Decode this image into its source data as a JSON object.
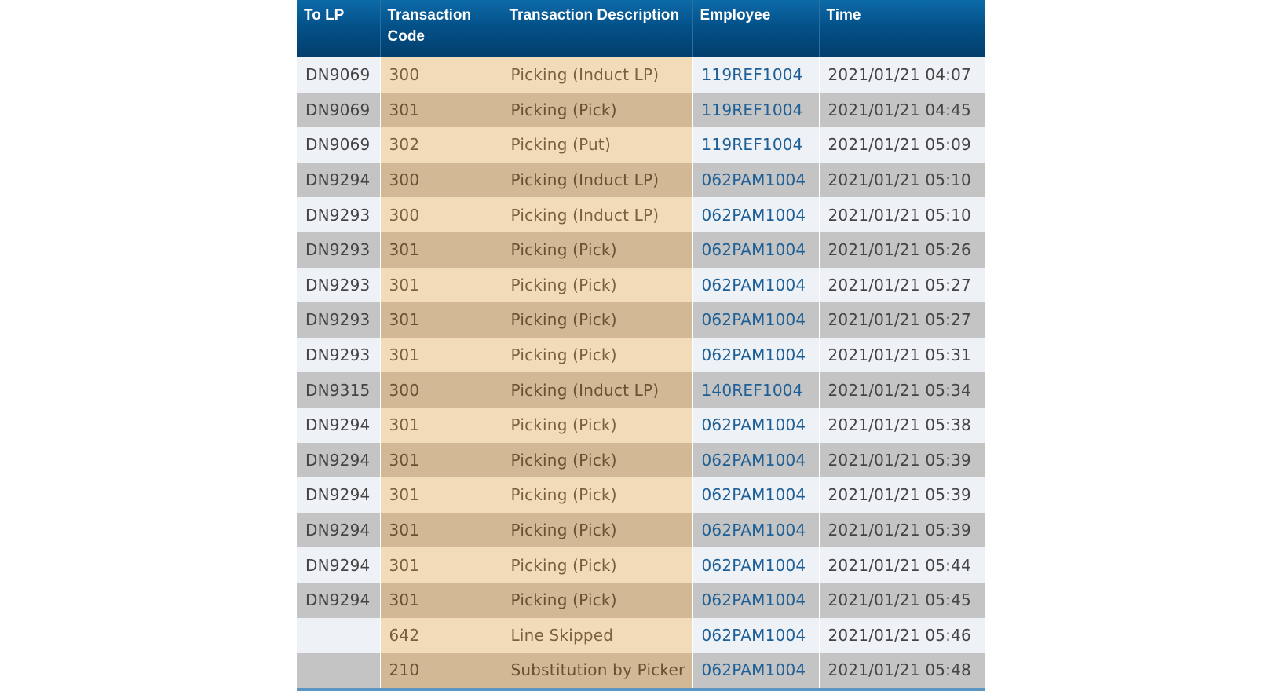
{
  "table": {
    "headers": {
      "to_lp": "To LP",
      "transaction_code": "Transaction Code",
      "transaction_description": "Transaction Description",
      "employee": "Employee",
      "time": "Time"
    },
    "rows": [
      {
        "to_lp": "DN9069",
        "code": "300",
        "description": "Picking (Induct LP)",
        "employee": "119REF1004",
        "time": "2021/01/21 04:07"
      },
      {
        "to_lp": "DN9069",
        "code": "301",
        "description": "Picking (Pick)",
        "employee": "119REF1004",
        "time": "2021/01/21 04:45"
      },
      {
        "to_lp": "DN9069",
        "code": "302",
        "description": "Picking (Put)",
        "employee": "119REF1004",
        "time": "2021/01/21 05:09"
      },
      {
        "to_lp": "DN9294",
        "code": "300",
        "description": "Picking (Induct LP)",
        "employee": "062PAM1004",
        "time": "2021/01/21 05:10"
      },
      {
        "to_lp": "DN9293",
        "code": "300",
        "description": "Picking (Induct LP)",
        "employee": "062PAM1004",
        "time": "2021/01/21 05:10"
      },
      {
        "to_lp": "DN9293",
        "code": "301",
        "description": "Picking (Pick)",
        "employee": "062PAM1004",
        "time": "2021/01/21 05:26"
      },
      {
        "to_lp": "DN9293",
        "code": "301",
        "description": "Picking (Pick)",
        "employee": "062PAM1004",
        "time": "2021/01/21 05:27"
      },
      {
        "to_lp": "DN9293",
        "code": "301",
        "description": "Picking (Pick)",
        "employee": "062PAM1004",
        "time": "2021/01/21 05:27"
      },
      {
        "to_lp": "DN9293",
        "code": "301",
        "description": "Picking (Pick)",
        "employee": "062PAM1004",
        "time": "2021/01/21 05:31"
      },
      {
        "to_lp": "DN9315",
        "code": "300",
        "description": "Picking (Induct LP)",
        "employee": "140REF1004",
        "time": "2021/01/21 05:34"
      },
      {
        "to_lp": "DN9294",
        "code": "301",
        "description": "Picking (Pick)",
        "employee": "062PAM1004",
        "time": "2021/01/21 05:38"
      },
      {
        "to_lp": "DN9294",
        "code": "301",
        "description": "Picking (Pick)",
        "employee": "062PAM1004",
        "time": "2021/01/21 05:39"
      },
      {
        "to_lp": "DN9294",
        "code": "301",
        "description": "Picking (Pick)",
        "employee": "062PAM1004",
        "time": "2021/01/21 05:39"
      },
      {
        "to_lp": "DN9294",
        "code": "301",
        "description": "Picking (Pick)",
        "employee": "062PAM1004",
        "time": "2021/01/21 05:39"
      },
      {
        "to_lp": "DN9294",
        "code": "301",
        "description": "Picking (Pick)",
        "employee": "062PAM1004",
        "time": "2021/01/21 05:44"
      },
      {
        "to_lp": "DN9294",
        "code": "301",
        "description": "Picking (Pick)",
        "employee": "062PAM1004",
        "time": "2021/01/21 05:45"
      },
      {
        "to_lp": "",
        "code": "642",
        "description": "Line Skipped",
        "employee": "062PAM1004",
        "time": "2021/01/21 05:46"
      },
      {
        "to_lp": "",
        "code": "210",
        "description": "Substitution by Picker",
        "employee": "062PAM1004",
        "time": "2021/01/21 05:48"
      }
    ]
  },
  "colors": {
    "header_blue": "#045189",
    "employee_link": "#1d5f96",
    "row_light": "#eef2f6",
    "row_gray": "#c4c4c4",
    "tan_light": "#f2dbb8",
    "tan_dark": "#d3b895"
  }
}
